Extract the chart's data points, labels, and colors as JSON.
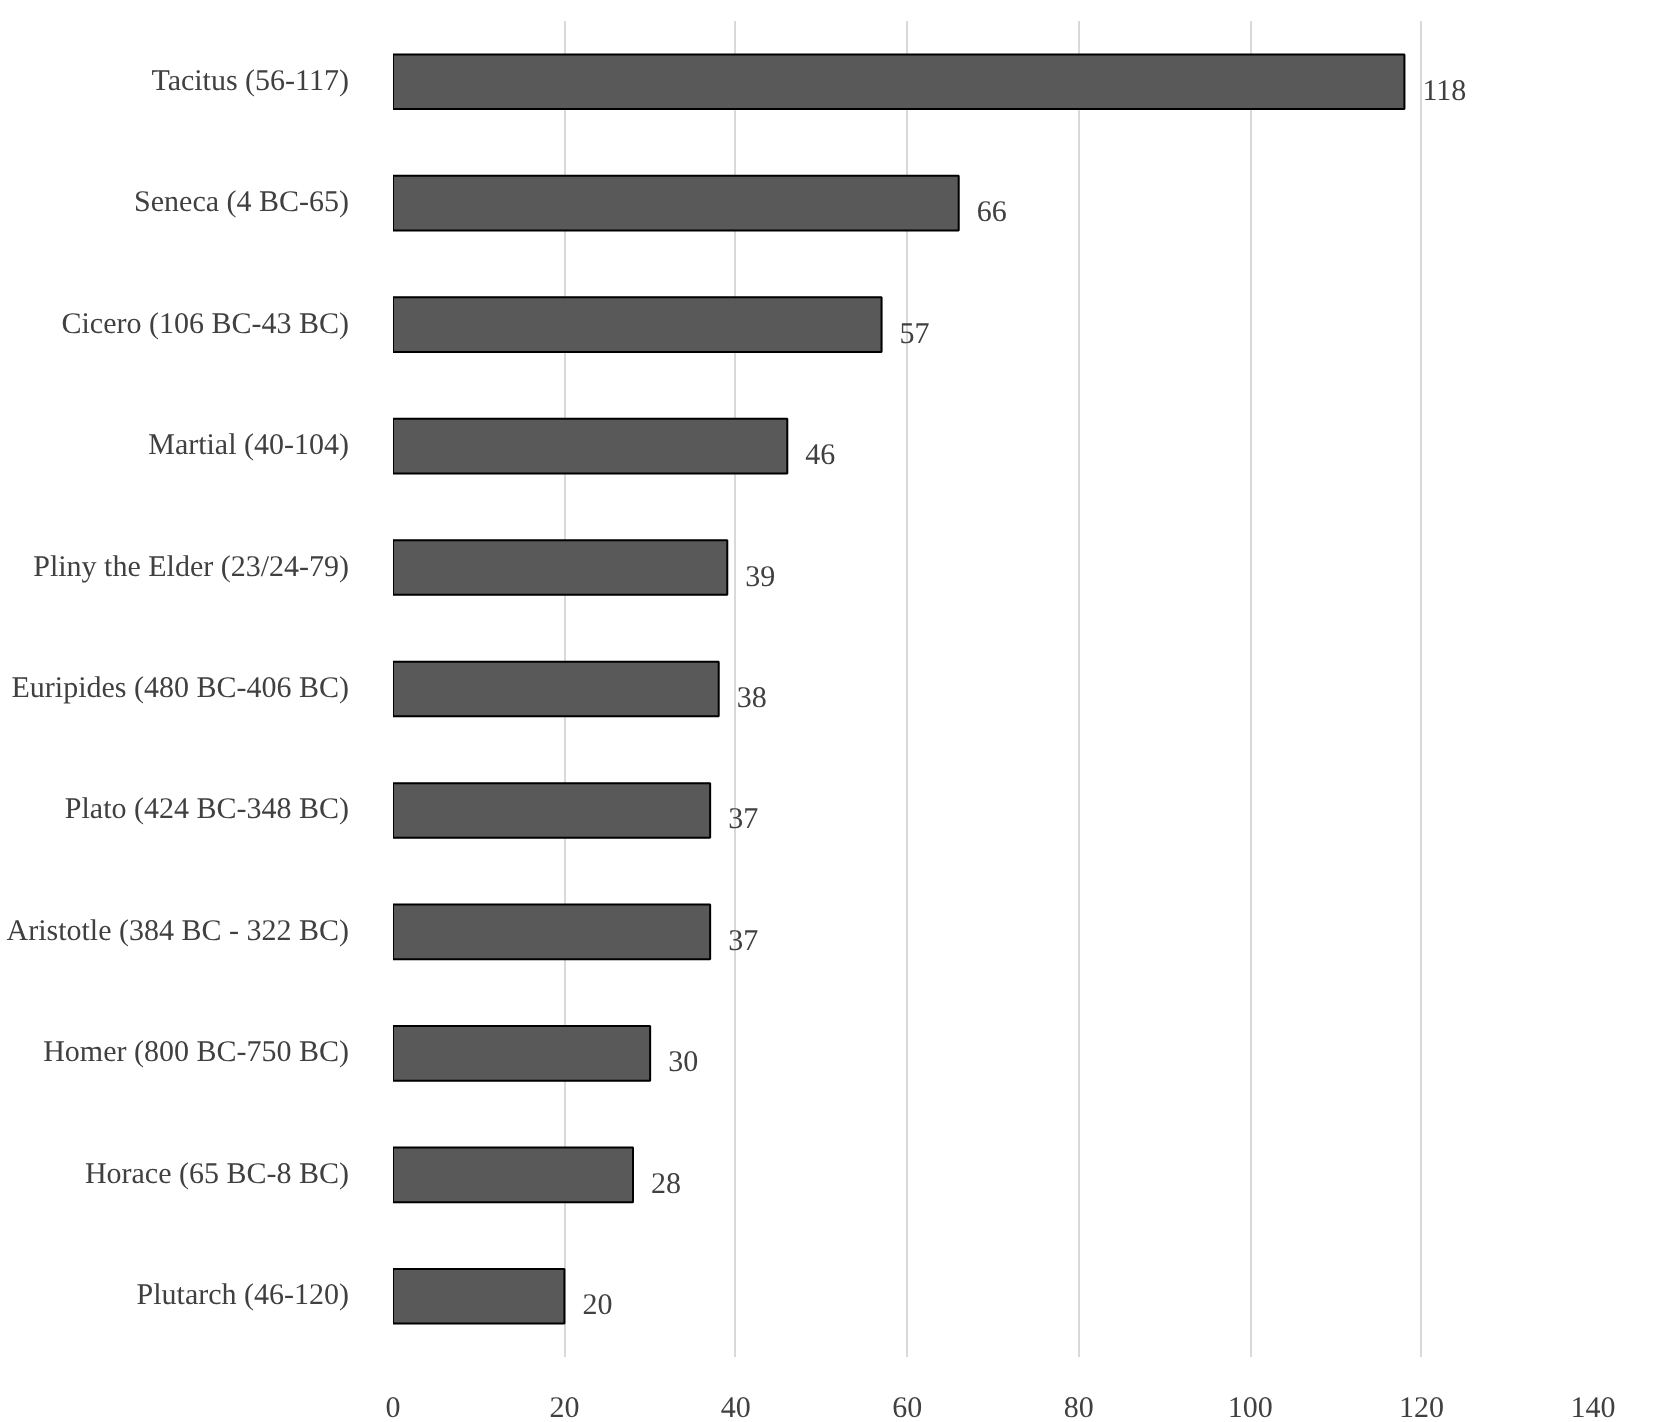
{
  "chart_data": {
    "type": "bar",
    "orientation": "horizontal",
    "categories": [
      "Tacitus (56-117)",
      "Seneca (4 BC-65)",
      "Cicero (106 BC-43 BC)",
      "Martial (40-104)",
      "Pliny the Elder (23/24-79)",
      "Euripides (480 BC-406 BC)",
      "Plato (424 BC-348 BC)",
      "Aristotle (384 BC - 322 BC)",
      "Homer (800 BC-750 BC)",
      "Horace (65 BC-8 BC)",
      "Plutarch (46-120)"
    ],
    "values": [
      118,
      66,
      57,
      46,
      39,
      38,
      37,
      37,
      30,
      28,
      20
    ],
    "color": "#595959",
    "xlim": [
      0,
      140
    ],
    "xticks": [
      0,
      20,
      40,
      60,
      80,
      100,
      120,
      140
    ],
    "grid": "x",
    "data_labels": true
  }
}
